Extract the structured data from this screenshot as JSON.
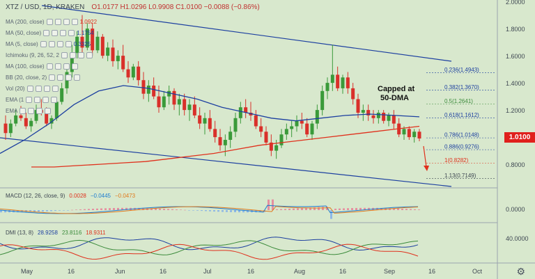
{
  "header": {
    "symbol": "XTZ / USD",
    "interval": "1D",
    "exchange": "KRAKEN",
    "title": "XTZ / USD, 1D, KRAKEN",
    "open": "O1.0177",
    "high": "H1.0296",
    "low": "L0.9908",
    "close": "C1.0100",
    "change": "−0.0088 (−0.86%)"
  },
  "indicators": [
    {
      "label": "MA (200, close)",
      "value": "1.0922",
      "color": "#e0301c"
    },
    {
      "label": "MA (50, close)",
      "value": "1.1754",
      "color": "#1c3fa0"
    },
    {
      "label": "MA (5, close)",
      "value": "0.3325",
      "color": "#1c3fa0"
    },
    {
      "label": "Ichimoku (9, 26, 52, 2",
      "value": "",
      "color": "#888888"
    },
    {
      "label": "MA (100, close)",
      "value": "",
      "color": "#888888"
    },
    {
      "label": "BB (20, close, 2)",
      "value": "",
      "color": "#888888"
    },
    {
      "label": "Vol (20)",
      "value": "",
      "color": "#888888"
    },
    {
      "label": "EMA (1",
      "value": "",
      "color": "#888888"
    },
    {
      "label": "EMA",
      "value": "",
      "color": "#888888"
    }
  ],
  "annotation": {
    "line1": "Capped at",
    "line2": "50-DMA"
  },
  "last_price": "1.0100",
  "price_axis": [
    "2.0000",
    "1.8000",
    "1.6000",
    "1.4000",
    "1.2000",
    "0.8000"
  ],
  "time_axis": [
    "May",
    "16",
    "Jun",
    "16",
    "Jul",
    "16",
    "Aug",
    "16",
    "Sep",
    "16",
    "Oct"
  ],
  "macd": {
    "label": "MACD (12, 26, close, 9)",
    "v1": "0.0028",
    "v2": "−0.0445",
    "v3": "−0.0473",
    "c1": "#e0301c",
    "c2": "#1c7cd0",
    "c3": "#e07a1c",
    "axis": "0.0000"
  },
  "dmi": {
    "label": "DMI (13, 8)",
    "v1": "28.9258",
    "v2": "23.8116",
    "v3": "18.9311",
    "c1": "#1c3fa0",
    "c2": "#3a8a3a",
    "c3": "#e0301c",
    "axis": "40.0000"
  },
  "chart_data": {
    "type": "candlestick",
    "title": "XTZ / USD, 1D, KRAKEN",
    "y_axis_ticks": [
      0.8,
      1.2,
      1.4,
      1.6,
      1.8,
      2.0
    ],
    "x_axis_ticks": [
      "May",
      "16",
      "Jun",
      "16",
      "Jul",
      "16",
      "Aug",
      "16",
      "Sep",
      "16",
      "Oct"
    ],
    "fibonacci": [
      {
        "level": "0.236",
        "price": "1.4943",
        "color": "#1c3fa0"
      },
      {
        "level": "0.382",
        "price": "1.3670",
        "color": "#1c3fa0"
      },
      {
        "level": "0.5",
        "price": "1.2641",
        "color": "#3a8a3a"
      },
      {
        "level": "0.618",
        "price": "1.1612",
        "color": "#1c3fa0"
      },
      {
        "level": "0.786",
        "price": "1.0148",
        "color": "#1c3fa0"
      },
      {
        "level": "0.886",
        "price": "0.9276",
        "color": "#1c3fa0"
      },
      {
        "level": "1",
        "price": "0.8282",
        "color": "#e0301c"
      },
      {
        "level": "1.13",
        "price": "0.7149",
        "color": "#3d4651"
      }
    ],
    "ohlc": [
      [
        1.12,
        1.18,
        1.0,
        1.05
      ],
      [
        1.05,
        1.15,
        1.02,
        1.12
      ],
      [
        1.12,
        1.22,
        1.1,
        1.18
      ],
      [
        1.18,
        1.25,
        1.14,
        1.16
      ],
      [
        1.16,
        1.2,
        1.08,
        1.1
      ],
      [
        1.1,
        1.16,
        1.06,
        1.14
      ],
      [
        1.14,
        1.26,
        1.12,
        1.22
      ],
      [
        1.22,
        1.3,
        1.18,
        1.2
      ],
      [
        1.2,
        1.24,
        1.1,
        1.12
      ],
      [
        1.12,
        1.18,
        1.08,
        1.16
      ],
      [
        1.16,
        1.3,
        1.14,
        1.28
      ],
      [
        1.28,
        1.42,
        1.26,
        1.38
      ],
      [
        1.38,
        1.55,
        1.34,
        1.5
      ],
      [
        1.5,
        1.7,
        1.46,
        1.64
      ],
      [
        1.64,
        1.8,
        1.6,
        1.76
      ],
      [
        1.76,
        1.92,
        1.6,
        1.68
      ],
      [
        1.68,
        1.86,
        1.66,
        1.82
      ],
      [
        1.82,
        1.86,
        1.62,
        1.66
      ],
      [
        1.66,
        1.8,
        1.64,
        1.76
      ],
      [
        1.76,
        1.78,
        1.6,
        1.62
      ],
      [
        1.62,
        1.72,
        1.58,
        1.68
      ],
      [
        1.68,
        1.74,
        1.54,
        1.58
      ],
      [
        1.58,
        1.66,
        1.52,
        1.62
      ],
      [
        1.62,
        1.7,
        1.5,
        1.52
      ],
      [
        1.52,
        1.58,
        1.42,
        1.46
      ],
      [
        1.46,
        1.56,
        1.44,
        1.54
      ],
      [
        1.54,
        1.58,
        1.4,
        1.44
      ],
      [
        1.44,
        1.5,
        1.3,
        1.34
      ],
      [
        1.34,
        1.44,
        1.28,
        1.4
      ],
      [
        1.4,
        1.46,
        1.3,
        1.32
      ],
      [
        1.32,
        1.4,
        1.2,
        1.24
      ],
      [
        1.24,
        1.36,
        1.22,
        1.32
      ],
      [
        1.32,
        1.4,
        1.26,
        1.36
      ],
      [
        1.36,
        1.38,
        1.22,
        1.26
      ],
      [
        1.26,
        1.34,
        1.18,
        1.3
      ],
      [
        1.3,
        1.34,
        1.18,
        1.22
      ],
      [
        1.22,
        1.3,
        1.14,
        1.26
      ],
      [
        1.26,
        1.32,
        1.16,
        1.18
      ],
      [
        1.18,
        1.24,
        1.08,
        1.12
      ],
      [
        1.12,
        1.2,
        1.04,
        1.16
      ],
      [
        1.16,
        1.22,
        1.06,
        1.08
      ],
      [
        1.08,
        1.14,
        0.98,
        1.02
      ],
      [
        1.02,
        1.08,
        0.92,
        0.96
      ],
      [
        0.96,
        1.04,
        0.88,
        1.0
      ],
      [
        1.0,
        1.1,
        0.94,
        1.06
      ],
      [
        1.06,
        1.2,
        1.02,
        1.16
      ],
      [
        1.16,
        1.28,
        1.12,
        1.24
      ],
      [
        1.24,
        1.3,
        1.16,
        1.2
      ],
      [
        1.2,
        1.28,
        1.14,
        1.18
      ],
      [
        1.18,
        1.22,
        1.08,
        1.1
      ],
      [
        1.1,
        1.16,
        1.02,
        1.06
      ],
      [
        1.06,
        1.1,
        0.96,
        0.98
      ],
      [
        0.98,
        1.04,
        0.88,
        0.92
      ],
      [
        0.92,
        1.0,
        0.86,
        0.96
      ],
      [
        0.96,
        1.08,
        0.94,
        1.04
      ],
      [
        1.04,
        1.12,
        1.0,
        1.08
      ],
      [
        1.08,
        1.14,
        1.02,
        1.1
      ],
      [
        1.1,
        1.18,
        1.06,
        1.14
      ],
      [
        1.14,
        1.2,
        1.08,
        1.12
      ],
      [
        1.12,
        1.16,
        1.02,
        1.04
      ],
      [
        1.04,
        1.14,
        1.0,
        1.12
      ],
      [
        1.12,
        1.26,
        1.08,
        1.22
      ],
      [
        1.22,
        1.4,
        1.18,
        1.36
      ],
      [
        1.36,
        1.46,
        1.3,
        1.42
      ],
      [
        1.42,
        1.7,
        1.36,
        1.48
      ],
      [
        1.48,
        1.54,
        1.36,
        1.38
      ],
      [
        1.38,
        1.48,
        1.34,
        1.46
      ],
      [
        1.46,
        1.5,
        1.34,
        1.38
      ],
      [
        1.38,
        1.42,
        1.26,
        1.3
      ],
      [
        1.3,
        1.34,
        1.16,
        1.2
      ],
      [
        1.2,
        1.26,
        1.14,
        1.22
      ],
      [
        1.22,
        1.26,
        1.14,
        1.18
      ],
      [
        1.18,
        1.22,
        1.12,
        1.16
      ],
      [
        1.16,
        1.22,
        1.12,
        1.2
      ],
      [
        1.2,
        1.22,
        1.12,
        1.14
      ],
      [
        1.14,
        1.2,
        1.1,
        1.18
      ],
      [
        1.18,
        1.22,
        1.08,
        1.12
      ],
      [
        1.12,
        1.16,
        1.02,
        1.04
      ],
      [
        1.04,
        1.1,
        1.0,
        1.08
      ],
      [
        1.08,
        1.1,
        1.0,
        1.02
      ],
      [
        1.02,
        1.08,
        0.98,
        1.06
      ],
      [
        1.06,
        1.08,
        0.99,
        1.01
      ]
    ],
    "series": [
      {
        "name": "MA (200, close)",
        "color": "#e0301c",
        "values": [
          0.8,
          0.8,
          0.81,
          0.82,
          0.83,
          0.84,
          0.86,
          0.88,
          0.9,
          0.93,
          0.96,
          0.98,
          1.0,
          1.02,
          1.04,
          1.06,
          1.08,
          1.1
        ]
      },
      {
        "name": "MA (50, close)",
        "color": "#1c3fa0",
        "values": [
          0.9,
          1.0,
          1.12,
          1.26,
          1.36,
          1.4,
          1.38,
          1.34,
          1.3,
          1.24,
          1.2,
          1.16,
          1.14,
          1.16,
          1.18,
          1.19,
          1.18,
          1.17
        ]
      }
    ]
  }
}
